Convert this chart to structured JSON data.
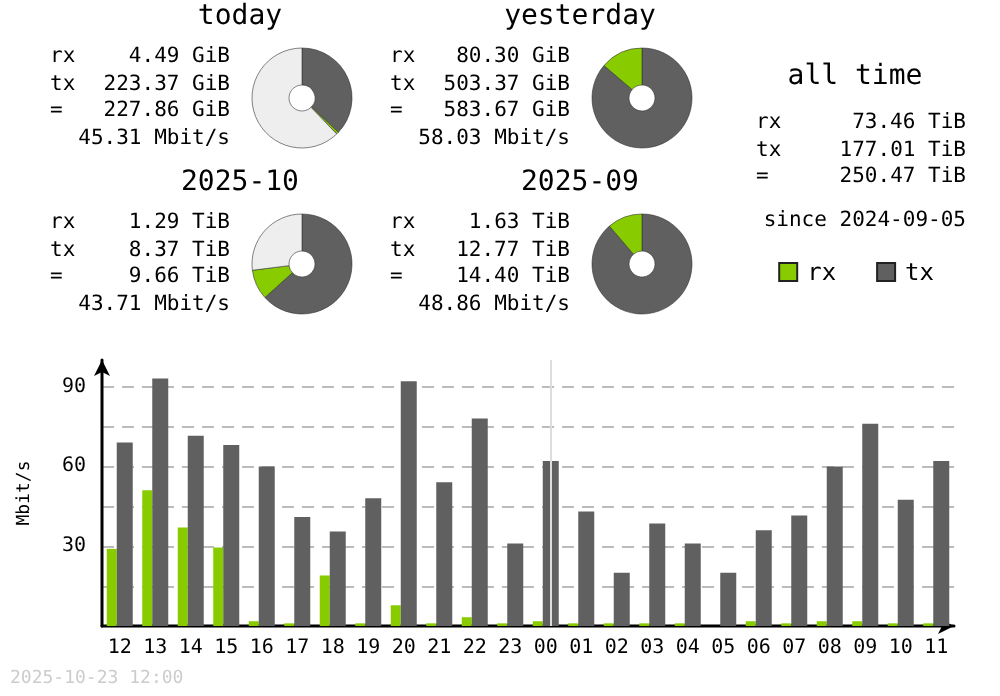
{
  "chart_data": [
    {
      "type": "donut",
      "title": "today",
      "categories": [
        null,
        null,
        null
      ],
      "values": [
        37.05,
        0.74,
        62.21
      ],
      "colors": [
        "#606060",
        "#88cc00",
        "#eeeeee"
      ],
      "annotations": [
        "rx",
        "4.49 GiB",
        "tx",
        "223.37 GiB",
        "=",
        "227.86 GiB",
        "45.31 Mbit/s"
      ]
    },
    {
      "type": "donut",
      "title": "yesterday",
      "categories": [
        null,
        null
      ],
      "values": [
        86.24,
        13.76
      ],
      "colors": [
        "#606060",
        "#88cc00"
      ],
      "annotations": [
        "rx",
        "80.30 GiB",
        "tx",
        "503.37 GiB",
        "=",
        "583.67 GiB",
        "58.03 Mbit/s"
      ]
    },
    {
      "type": "donut",
      "title": "2025-10",
      "categories": [
        null,
        null,
        null
      ],
      "values": [
        63.3,
        9.7,
        27.0
      ],
      "colors": [
        "#606060",
        "#88cc00",
        "#eeeeee"
      ],
      "annotations": [
        "rx",
        "1.29 TiB",
        "tx",
        "8.37 TiB",
        "=",
        "9.66 TiB",
        "43.71 Mbit/s"
      ]
    },
    {
      "type": "donut",
      "title": "2025-09",
      "categories": [
        null,
        null
      ],
      "values": [
        88.68,
        11.32
      ],
      "colors": [
        "#606060",
        "#88cc00"
      ],
      "annotations": [
        "rx",
        "1.63 TiB",
        "tx",
        "12.77 TiB",
        "=",
        "14.40 TiB",
        "48.86 Mbit/s"
      ]
    },
    {
      "type": "other",
      "title": "all time",
      "annotations": [
        "rx",
        "73.46 TiB",
        "tx",
        "177.01 TiB",
        "=",
        "250.47 TiB",
        "since 2024-09-05"
      ]
    },
    {
      "type": "bar",
      "ylabel": "Mbit/s",
      "categories": [
        "12",
        "13",
        "14",
        "15",
        "16",
        "17",
        "18",
        "19",
        "20",
        "21",
        "22",
        "23",
        "00",
        "01",
        "02",
        "03",
        "04",
        "05",
        "06",
        "07",
        "08",
        "09",
        "10",
        "11"
      ],
      "series": [
        {
          "name": "rx",
          "color": "#88cc00",
          "values": [
            29,
            51,
            37,
            29.5,
            1.8,
            1,
            19,
            1,
            7.8,
            1,
            3.3,
            1,
            1.8,
            1,
            1,
            1,
            1,
            0,
            1.8,
            1,
            1.8,
            1.8,
            1,
            1
          ]
        },
        {
          "name": "tx",
          "color": "#606060",
          "values": [
            69,
            93,
            71.5,
            68,
            60,
            41,
            35.5,
            48,
            92,
            54,
            78,
            31,
            62,
            43,
            20,
            38.5,
            31,
            20,
            36,
            41.5,
            60,
            76,
            47.5,
            62
          ]
        }
      ],
      "ylim": [
        0,
        100
      ],
      "yticks": [
        {
          "value": 15,
          "label": null
        },
        30,
        {
          "value": 45,
          "label": null
        },
        60,
        {
          "value": 75,
          "label": null
        },
        90
      ],
      "grid": "y",
      "legend": "top right",
      "ref_lines": [
        {
          "axis": "x",
          "value": "00",
          "color": "#dddddd"
        }
      ],
      "annotations": [
        "2025-10-23 12:00"
      ]
    }
  ]
}
